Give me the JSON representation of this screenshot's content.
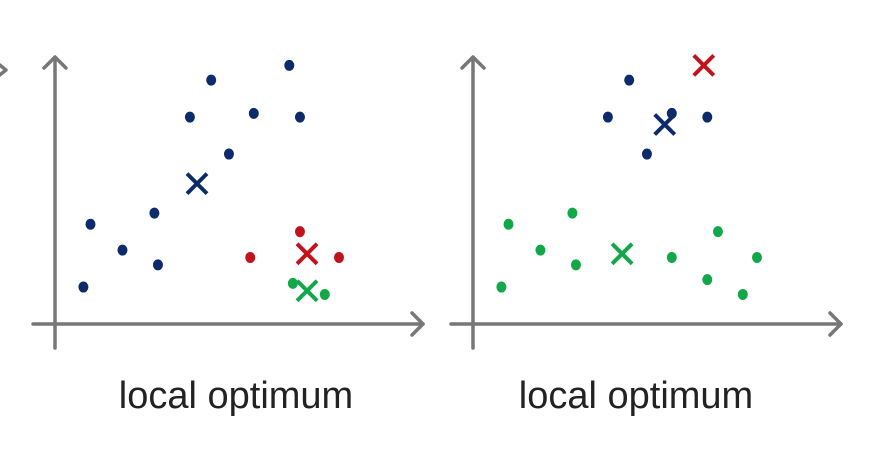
{
  "colors": {
    "axis": "#777777",
    "blue": "#0d2a6b",
    "red": "#c2121c",
    "green": "#12a84a",
    "caption": "#222222"
  },
  "chart_data": [
    {
      "type": "scatter",
      "title": "local optimum",
      "xlabel": "",
      "ylabel": "",
      "xlim": [
        0,
        10
      ],
      "ylim": [
        0,
        7.2
      ],
      "grid": false,
      "series": [
        {
          "color": "#0d2a6b",
          "marker": "dot",
          "points": [
            [
              0.8,
              1.0
            ],
            [
              1.0,
              2.7
            ],
            [
              1.9,
              2.0
            ],
            [
              2.8,
              3.0
            ],
            [
              2.9,
              1.6
            ],
            [
              3.8,
              5.6
            ],
            [
              4.4,
              6.6
            ],
            [
              4.9,
              4.6
            ],
            [
              5.6,
              5.7
            ],
            [
              6.6,
              7.0
            ],
            [
              6.9,
              5.6
            ]
          ]
        },
        {
          "color": "#c2121c",
          "marker": "dot",
          "points": [
            [
              5.5,
              1.8
            ],
            [
              6.9,
              2.5
            ],
            [
              8.0,
              1.8
            ]
          ]
        },
        {
          "color": "#12a84a",
          "marker": "dot",
          "points": [
            [
              6.7,
              1.1
            ],
            [
              7.6,
              0.8
            ]
          ]
        },
        {
          "color": "#0d2a6b",
          "marker": "x",
          "points": [
            [
              4.0,
              3.8
            ]
          ]
        },
        {
          "color": "#c2121c",
          "marker": "x",
          "points": [
            [
              7.1,
              1.9
            ]
          ]
        },
        {
          "color": "#12a84a",
          "marker": "x",
          "points": [
            [
              7.1,
              0.9
            ]
          ]
        }
      ]
    },
    {
      "type": "scatter",
      "title": "local optimum",
      "xlabel": "",
      "ylabel": "",
      "xlim": [
        0,
        10
      ],
      "ylim": [
        0,
        7.2
      ],
      "grid": false,
      "series": [
        {
          "color": "#0d2a6b",
          "marker": "dot",
          "points": [
            [
              3.8,
              5.6
            ],
            [
              4.4,
              6.6
            ],
            [
              4.9,
              4.6
            ],
            [
              5.6,
              5.7
            ],
            [
              6.6,
              5.6
            ]
          ]
        },
        {
          "color": "#12a84a",
          "marker": "dot",
          "points": [
            [
              0.8,
              1.0
            ],
            [
              1.0,
              2.7
            ],
            [
              1.9,
              2.0
            ],
            [
              2.8,
              3.0
            ],
            [
              2.9,
              1.6
            ],
            [
              5.6,
              1.8
            ],
            [
              6.6,
              1.2
            ],
            [
              6.9,
              2.5
            ],
            [
              7.6,
              0.8
            ],
            [
              8.0,
              1.8
            ]
          ]
        },
        {
          "color": "#0d2a6b",
          "marker": "x",
          "points": [
            [
              5.4,
              5.4
            ]
          ]
        },
        {
          "color": "#c2121c",
          "marker": "x",
          "points": [
            [
              6.5,
              7.0
            ]
          ]
        },
        {
          "color": "#12a84a",
          "marker": "x",
          "points": [
            [
              4.2,
              1.9
            ]
          ]
        }
      ]
    }
  ]
}
